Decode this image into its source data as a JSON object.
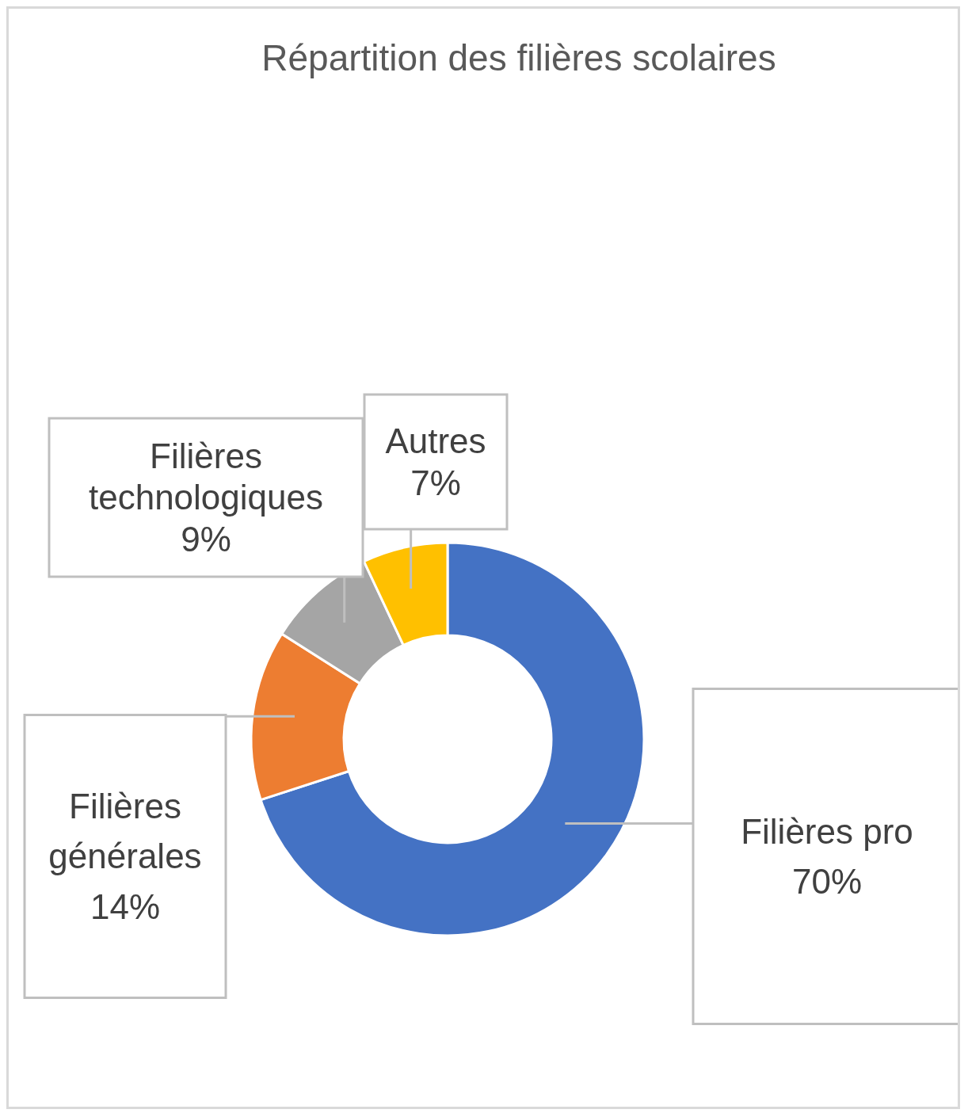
{
  "chart_data": {
    "type": "donut",
    "title": "Répartition des filières scolaires",
    "categories": [
      "Filières pro",
      "Filières générales",
      "Filières technologiques",
      "Autres"
    ],
    "values": [
      70,
      14,
      9,
      7
    ],
    "value_labels": [
      "70%",
      "14%",
      "9%",
      "7%"
    ],
    "colors": [
      "#4472c4",
      "#ed7d31",
      "#a5a5a5",
      "#ffc000"
    ]
  }
}
